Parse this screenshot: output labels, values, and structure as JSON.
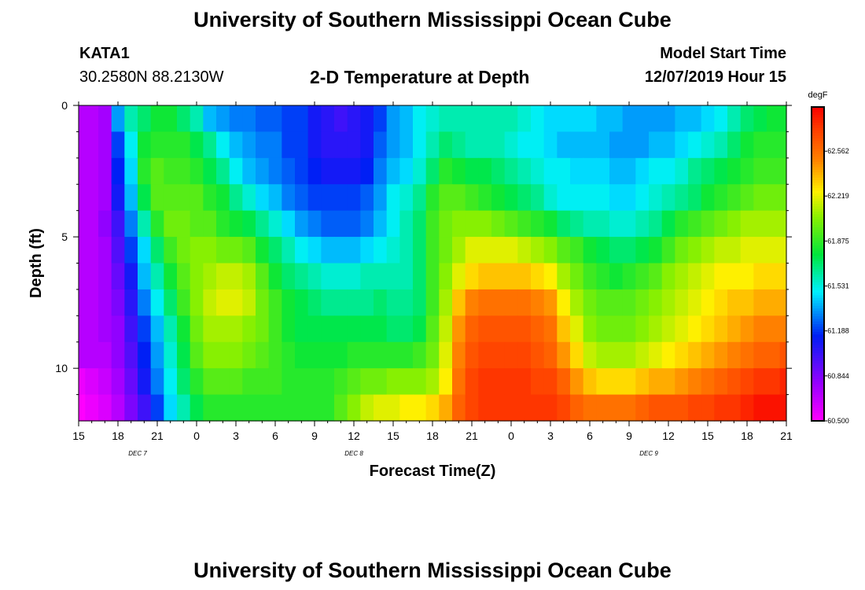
{
  "page": {
    "title_top": "University of Southern Mississippi Ocean Cube",
    "title_bottom": "University of Southern Mississippi Ocean Cube",
    "station_id": "KATA1",
    "station_coords": "30.2580N 88.2130W",
    "plot_title": "2-D Temperature at Depth",
    "model_start_label": "Model Start Time",
    "model_start_value": "12/07/2019 Hour 15"
  },
  "chart_data": {
    "type": "heatmap",
    "title": "2-D Temperature at Depth",
    "xlabel": "Forecast Time(Z)",
    "ylabel": "Depth (ft)",
    "x_hours": [
      0,
      1,
      2,
      3,
      4,
      5,
      6,
      7,
      8,
      9,
      10,
      11,
      12,
      13,
      14,
      15,
      16,
      17,
      18,
      19,
      20,
      21,
      22,
      23,
      24,
      25,
      26,
      27,
      28,
      29,
      30,
      31,
      32,
      33,
      34,
      35,
      36,
      37,
      38,
      39,
      40,
      41,
      42,
      43,
      44,
      45,
      46,
      47,
      48,
      49,
      50,
      51,
      52,
      53,
      54
    ],
    "x_tick_labels": [
      "15",
      "18",
      "21",
      "0",
      "3",
      "6",
      "9",
      "12",
      "15",
      "18",
      "21",
      "0",
      "3",
      "6",
      "9",
      "12",
      "15",
      "18",
      "21"
    ],
    "x_tick_hours": [
      0,
      3,
      6,
      9,
      12,
      15,
      18,
      21,
      24,
      27,
      30,
      33,
      36,
      39,
      42,
      45,
      48,
      51,
      54
    ],
    "date_labels": [
      {
        "text": "DEC 7",
        "hour": 4.5
      },
      {
        "text": "DEC 8",
        "hour": 21
      },
      {
        "text": "DEC 9",
        "hour": 43.5
      }
    ],
    "y_ticks": [
      0,
      5,
      10
    ],
    "depth_levels_ft": [
      0.5,
      1.5,
      2.5,
      3.5,
      4.5,
      5.5,
      6.5,
      7.5,
      8.5,
      9.5,
      10.5,
      11.5
    ],
    "ylim": [
      0,
      12
    ],
    "xlim": [
      0,
      54
    ],
    "colorbar": {
      "units": "degF",
      "min": 60.5,
      "max": 62.9,
      "tick_labels": [
        "60.500",
        "60.844",
        "61.188",
        "61.531",
        "61.875",
        "62.219",
        "62.562"
      ]
    },
    "values_degF": [
      [
        60.7,
        60.7,
        60.75,
        61.35,
        61.6,
        61.7,
        61.8,
        61.8,
        61.7,
        61.6,
        61.4,
        61.35,
        61.3,
        61.3,
        61.25,
        61.25,
        61.2,
        61.2,
        61.1,
        61.05,
        61.0,
        61.05,
        61.1,
        61.2,
        61.35,
        61.4,
        61.5,
        61.55,
        61.6,
        61.6,
        61.6,
        61.6,
        61.6,
        61.6,
        61.55,
        61.5,
        61.45,
        61.45,
        61.45,
        61.45,
        61.4,
        61.4,
        61.35,
        61.35,
        61.35,
        61.35,
        61.4,
        61.4,
        61.45,
        61.5,
        61.6,
        61.7,
        61.75,
        61.8,
        61.8
      ],
      [
        60.7,
        60.7,
        60.75,
        61.2,
        61.5,
        61.8,
        61.85,
        61.85,
        61.85,
        61.75,
        61.65,
        61.5,
        61.4,
        61.35,
        61.3,
        61.3,
        61.2,
        61.2,
        61.1,
        61.05,
        61.05,
        61.05,
        61.1,
        61.25,
        61.35,
        61.4,
        61.5,
        61.6,
        61.7,
        61.65,
        61.6,
        61.6,
        61.6,
        61.55,
        61.5,
        61.5,
        61.45,
        61.4,
        61.4,
        61.4,
        61.4,
        61.35,
        61.35,
        61.35,
        61.4,
        61.4,
        61.45,
        61.5,
        61.55,
        61.6,
        61.7,
        61.8,
        61.85,
        61.85,
        61.85
      ],
      [
        60.7,
        60.7,
        60.75,
        61.15,
        61.45,
        61.85,
        61.95,
        61.9,
        61.9,
        61.85,
        61.75,
        61.65,
        61.5,
        61.4,
        61.35,
        61.3,
        61.25,
        61.2,
        61.15,
        61.1,
        61.1,
        61.1,
        61.15,
        61.3,
        61.4,
        61.45,
        61.55,
        61.7,
        61.85,
        61.8,
        61.75,
        61.75,
        61.7,
        61.65,
        61.6,
        61.55,
        61.5,
        61.5,
        61.45,
        61.45,
        61.45,
        61.4,
        61.4,
        61.45,
        61.5,
        61.5,
        61.55,
        61.65,
        61.7,
        61.75,
        61.8,
        61.85,
        61.9,
        61.9,
        61.9
      ],
      [
        60.7,
        60.7,
        60.75,
        61.1,
        61.4,
        61.75,
        61.95,
        61.95,
        61.95,
        61.95,
        61.85,
        61.8,
        61.65,
        61.55,
        61.45,
        61.4,
        61.3,
        61.25,
        61.2,
        61.2,
        61.2,
        61.2,
        61.25,
        61.35,
        61.5,
        61.55,
        61.65,
        61.85,
        61.95,
        61.95,
        61.9,
        61.85,
        61.8,
        61.75,
        61.7,
        61.65,
        61.55,
        61.5,
        61.5,
        61.5,
        61.5,
        61.45,
        61.45,
        61.5,
        61.55,
        61.6,
        61.65,
        61.7,
        61.8,
        61.85,
        61.9,
        61.95,
        62.0,
        62.0,
        62.0
      ],
      [
        60.7,
        60.7,
        60.8,
        61.0,
        61.3,
        61.6,
        61.85,
        62.0,
        62.0,
        61.95,
        61.95,
        61.85,
        61.8,
        61.75,
        61.65,
        61.55,
        61.45,
        61.35,
        61.3,
        61.25,
        61.25,
        61.25,
        61.3,
        61.4,
        61.5,
        61.6,
        61.7,
        61.9,
        62.0,
        62.05,
        62.05,
        62.05,
        62.0,
        61.95,
        61.9,
        61.85,
        61.8,
        61.7,
        61.65,
        61.6,
        61.6,
        61.55,
        61.55,
        61.6,
        61.65,
        61.75,
        61.85,
        61.9,
        61.95,
        62.0,
        62.05,
        62.1,
        62.1,
        62.1,
        62.1
      ],
      [
        60.7,
        60.7,
        60.75,
        60.95,
        61.2,
        61.45,
        61.7,
        61.9,
        62.0,
        62.05,
        62.05,
        62.0,
        62.0,
        61.95,
        61.8,
        61.7,
        61.6,
        61.5,
        61.45,
        61.4,
        61.4,
        61.4,
        61.45,
        61.5,
        61.55,
        61.6,
        61.7,
        61.9,
        62.0,
        62.1,
        62.2,
        62.2,
        62.2,
        62.2,
        62.15,
        62.1,
        62.05,
        61.95,
        61.9,
        61.8,
        61.75,
        61.7,
        61.7,
        61.75,
        61.8,
        61.9,
        62.0,
        62.05,
        62.1,
        62.15,
        62.15,
        62.2,
        62.2,
        62.2,
        62.2
      ],
      [
        60.7,
        60.7,
        60.75,
        60.9,
        61.1,
        61.4,
        61.6,
        61.8,
        61.95,
        62.05,
        62.1,
        62.15,
        62.15,
        62.1,
        61.95,
        61.8,
        61.7,
        61.65,
        61.6,
        61.55,
        61.55,
        61.55,
        61.6,
        61.6,
        61.6,
        61.6,
        61.7,
        61.9,
        62.05,
        62.2,
        62.3,
        62.35,
        62.35,
        62.35,
        62.35,
        62.3,
        62.25,
        62.1,
        62.0,
        61.9,
        61.85,
        61.8,
        61.85,
        61.9,
        61.95,
        62.05,
        62.1,
        62.15,
        62.2,
        62.25,
        62.25,
        62.25,
        62.3,
        62.3,
        62.3
      ],
      [
        60.7,
        60.7,
        60.75,
        60.85,
        61.05,
        61.3,
        61.5,
        61.7,
        61.9,
        62.05,
        62.15,
        62.2,
        62.2,
        62.15,
        62.0,
        61.9,
        61.8,
        61.75,
        61.7,
        61.65,
        61.65,
        61.65,
        61.65,
        61.7,
        61.65,
        61.65,
        61.7,
        61.9,
        62.1,
        62.35,
        62.5,
        62.55,
        62.55,
        62.55,
        62.55,
        62.5,
        62.45,
        62.25,
        62.1,
        62.0,
        61.95,
        61.95,
        61.95,
        62.0,
        62.05,
        62.1,
        62.15,
        62.2,
        62.25,
        62.3,
        62.35,
        62.35,
        62.4,
        62.4,
        62.4
      ],
      [
        60.7,
        60.7,
        60.75,
        60.8,
        61.0,
        61.2,
        61.4,
        61.6,
        61.8,
        62.0,
        62.1,
        62.1,
        62.1,
        62.05,
        62.0,
        61.9,
        61.8,
        61.75,
        61.75,
        61.75,
        61.75,
        61.75,
        61.75,
        61.75,
        61.7,
        61.7,
        61.75,
        61.95,
        62.15,
        62.45,
        62.6,
        62.65,
        62.65,
        62.65,
        62.65,
        62.6,
        62.55,
        62.35,
        62.2,
        62.05,
        62.0,
        62.0,
        62.0,
        62.05,
        62.1,
        62.15,
        62.2,
        62.25,
        62.3,
        62.35,
        62.4,
        62.45,
        62.5,
        62.5,
        62.5
      ],
      [
        60.7,
        60.7,
        60.7,
        60.8,
        60.95,
        61.15,
        61.35,
        61.55,
        61.75,
        61.95,
        62.05,
        62.05,
        62.05,
        62.0,
        61.95,
        61.9,
        61.85,
        61.8,
        61.8,
        61.8,
        61.8,
        61.85,
        61.85,
        61.85,
        61.85,
        61.85,
        61.9,
        62.0,
        62.2,
        62.5,
        62.65,
        62.7,
        62.7,
        62.7,
        62.7,
        62.65,
        62.6,
        62.45,
        62.3,
        62.15,
        62.1,
        62.1,
        62.1,
        62.15,
        62.2,
        62.25,
        62.3,
        62.35,
        62.4,
        62.45,
        62.5,
        62.55,
        62.6,
        62.6,
        62.65
      ],
      [
        60.55,
        60.6,
        60.65,
        60.75,
        60.9,
        61.1,
        61.3,
        61.5,
        61.7,
        61.85,
        61.95,
        61.95,
        61.95,
        61.9,
        61.9,
        61.9,
        61.85,
        61.85,
        61.85,
        61.85,
        61.9,
        61.95,
        62.0,
        62.0,
        62.05,
        62.05,
        62.05,
        62.1,
        62.25,
        62.55,
        62.7,
        62.75,
        62.75,
        62.75,
        62.75,
        62.7,
        62.7,
        62.6,
        62.45,
        62.35,
        62.3,
        62.3,
        62.3,
        62.35,
        62.4,
        62.4,
        62.45,
        62.5,
        62.55,
        62.6,
        62.65,
        62.7,
        62.75,
        62.75,
        62.8
      ],
      [
        60.5,
        60.55,
        60.6,
        60.7,
        60.85,
        61.0,
        61.2,
        61.45,
        61.6,
        61.75,
        61.85,
        61.85,
        61.85,
        61.85,
        61.85,
        61.85,
        61.85,
        61.85,
        61.85,
        61.85,
        61.95,
        62.05,
        62.15,
        62.2,
        62.2,
        62.25,
        62.25,
        62.3,
        62.4,
        62.6,
        62.7,
        62.75,
        62.75,
        62.75,
        62.75,
        62.75,
        62.75,
        62.7,
        62.6,
        62.55,
        62.55,
        62.55,
        62.55,
        62.6,
        62.65,
        62.65,
        62.65,
        62.7,
        62.7,
        62.75,
        62.75,
        62.8,
        62.85,
        62.85,
        62.85
      ]
    ]
  }
}
